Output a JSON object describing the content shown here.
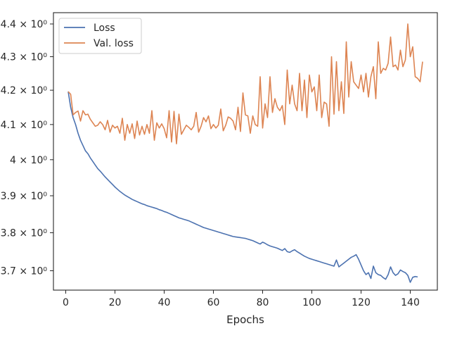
{
  "chart_data": {
    "type": "line",
    "title": "",
    "xlabel": "Epochs",
    "ylabel": "",
    "yscale": "log",
    "grid": false,
    "legend_position": "top-left",
    "xlim": [
      -5,
      151
    ],
    "ylim": [
      3.65,
      4.435
    ],
    "x_ticks": [
      0,
      20,
      40,
      60,
      80,
      100,
      120,
      140
    ],
    "x_tick_labels": [
      "0",
      "20",
      "40",
      "60",
      "80",
      "100",
      "120",
      "140"
    ],
    "y_ticks": [
      3.7,
      3.8,
      3.9,
      4.0,
      4.1,
      4.2,
      4.3,
      4.4
    ],
    "y_tick_labels": [
      "3.7 × 10⁰",
      "3.8 × 10⁰",
      "3.9 × 10⁰",
      "4 × 10⁰",
      "4.1 × 10⁰",
      "4.2 × 10⁰",
      "4.3 × 10⁰",
      "4.4 × 10⁰"
    ],
    "series": [
      {
        "name": "Loss",
        "color": "#4c72b0",
        "x_start": 1,
        "values": [
          4.196,
          4.15,
          4.12,
          4.1,
          4.075,
          4.055,
          4.04,
          4.025,
          4.017,
          4.005,
          3.995,
          3.985,
          3.975,
          3.968,
          3.96,
          3.952,
          3.945,
          3.938,
          3.931,
          3.924,
          3.918,
          3.912,
          3.907,
          3.902,
          3.898,
          3.894,
          3.89,
          3.887,
          3.884,
          3.881,
          3.878,
          3.876,
          3.873,
          3.871,
          3.869,
          3.867,
          3.865,
          3.862,
          3.86,
          3.857,
          3.855,
          3.852,
          3.849,
          3.846,
          3.843,
          3.84,
          3.838,
          3.836,
          3.834,
          3.832,
          3.829,
          3.826,
          3.823,
          3.82,
          3.817,
          3.814,
          3.812,
          3.81,
          3.808,
          3.806,
          3.804,
          3.802,
          3.8,
          3.798,
          3.796,
          3.794,
          3.792,
          3.79,
          3.789,
          3.788,
          3.787,
          3.786,
          3.785,
          3.783,
          3.781,
          3.779,
          3.776,
          3.773,
          3.77,
          3.775,
          3.772,
          3.768,
          3.765,
          3.763,
          3.761,
          3.759,
          3.756,
          3.753,
          3.758,
          3.75,
          3.748,
          3.752,
          3.755,
          3.75,
          3.746,
          3.742,
          3.738,
          3.735,
          3.732,
          3.73,
          3.728,
          3.726,
          3.724,
          3.722,
          3.72,
          3.718,
          3.716,
          3.714,
          3.712,
          3.728,
          3.71,
          3.715,
          3.72,
          3.725,
          3.73,
          3.735,
          3.738,
          3.742,
          3.73,
          3.715,
          3.7,
          3.69,
          3.695,
          3.68,
          3.712,
          3.695,
          3.69,
          3.688,
          3.682,
          3.678,
          3.69,
          3.71,
          3.695,
          3.688,
          3.692,
          3.702,
          3.698,
          3.695,
          3.688,
          3.67,
          3.683,
          3.685,
          3.684
        ]
      },
      {
        "name": "Val. loss",
        "color": "#dd8452",
        "x_start": 1,
        "values": [
          4.196,
          4.188,
          4.128,
          4.135,
          4.139,
          4.11,
          4.14,
          4.128,
          4.13,
          4.115,
          4.105,
          4.095,
          4.098,
          4.108,
          4.1,
          4.085,
          4.112,
          4.078,
          4.098,
          4.09,
          4.095,
          4.075,
          4.118,
          4.055,
          4.1,
          4.075,
          4.102,
          4.06,
          4.11,
          4.07,
          4.095,
          4.072,
          4.1,
          4.075,
          4.14,
          4.055,
          4.105,
          4.09,
          4.102,
          4.088,
          4.062,
          4.14,
          4.05,
          4.138,
          4.045,
          4.13,
          4.072,
          4.085,
          4.098,
          4.092,
          4.085,
          4.095,
          4.135,
          4.078,
          4.095,
          4.12,
          4.108,
          4.125,
          4.088,
          4.1,
          4.09,
          4.098,
          4.145,
          4.082,
          4.098,
          4.122,
          4.118,
          4.11,
          4.085,
          4.15,
          4.08,
          4.192,
          4.128,
          4.125,
          4.075,
          4.125,
          4.1,
          4.095,
          4.24,
          4.09,
          4.16,
          4.12,
          4.24,
          4.135,
          4.175,
          4.15,
          4.14,
          4.155,
          4.1,
          4.26,
          4.16,
          4.215,
          4.16,
          4.14,
          4.25,
          4.14,
          4.23,
          4.12,
          4.245,
          4.195,
          4.21,
          4.14,
          4.245,
          4.12,
          4.165,
          4.16,
          4.095,
          4.3,
          4.13,
          4.285,
          4.14,
          4.225,
          4.132,
          4.345,
          4.18,
          4.285,
          4.225,
          4.215,
          4.205,
          4.245,
          4.195,
          4.25,
          4.18,
          4.24,
          4.27,
          4.175,
          4.345,
          4.25,
          4.265,
          4.26,
          4.28,
          4.36,
          4.27,
          4.275,
          4.26,
          4.32,
          4.27,
          4.29,
          4.4,
          4.3,
          4.33,
          4.24,
          4.235,
          4.225,
          4.285
        ]
      }
    ]
  }
}
